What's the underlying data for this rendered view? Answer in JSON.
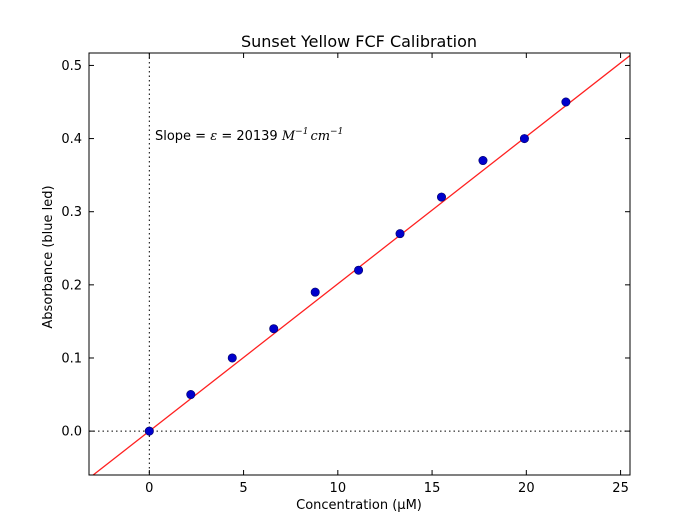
{
  "chart_data": {
    "type": "scatter",
    "title": "Sunset Yellow FCF Calibration",
    "xlabel": "Concentration (μM)",
    "ylabel": "Absorbance (blue led)",
    "xlim": [
      -3.2,
      25.5
    ],
    "ylim": [
      -0.06,
      0.517
    ],
    "xticks": [
      0,
      5,
      10,
      15,
      20,
      25
    ],
    "yticks": [
      0.0,
      0.1,
      0.2,
      0.3,
      0.4,
      0.5
    ],
    "xtick_labels": [
      "0",
      "5",
      "10",
      "15",
      "20",
      "25"
    ],
    "ytick_labels": [
      "0.0",
      "0.1",
      "0.2",
      "0.3",
      "0.4",
      "0.5"
    ],
    "grid": false,
    "series": [
      {
        "type": "scatter",
        "color": "#0000cc",
        "x": [
          0,
          2.2,
          4.4,
          6.6,
          8.8,
          11.1,
          13.3,
          15.5,
          17.7,
          19.9,
          22.1
        ],
        "y": [
          0.0,
          0.05,
          0.1,
          0.14,
          0.19,
          0.22,
          0.27,
          0.32,
          0.37,
          0.4,
          0.45
        ]
      },
      {
        "type": "line",
        "color": "#ff2020",
        "slope": 0.020139,
        "intercept": 0.0
      }
    ],
    "reference_lines": [
      {
        "orientation": "vertical",
        "value": 0,
        "style": "dotted"
      },
      {
        "orientation": "horizontal",
        "value": 0,
        "style": "dotted"
      }
    ],
    "annotation": {
      "prefix": "Slope = ",
      "symbol": "ε",
      "middle": " = 20139 ",
      "unit_m": "M",
      "unit_m_exp": "−1",
      "unit_cm": "cm",
      "unit_cm_exp": "−1",
      "anchor": {
        "x": 0.3,
        "y": 0.405
      }
    }
  }
}
